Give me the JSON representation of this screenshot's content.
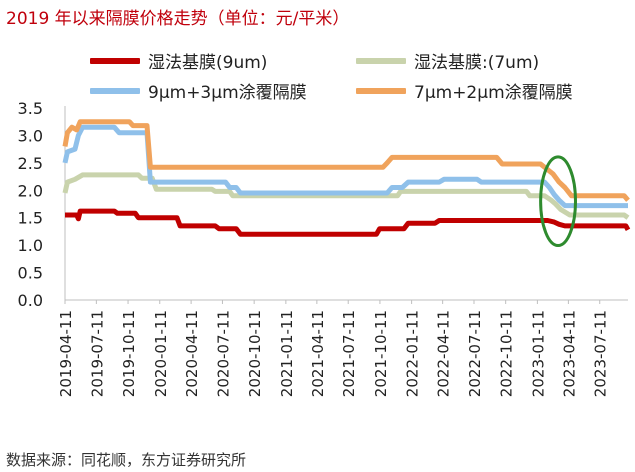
{
  "title": "2019 年以来隔膜价格走势（单位：元/平米）",
  "source": "数据来源：同花顺，东方证券研究所",
  "colors": {
    "wet_9um": "#c00000",
    "dry_7um": "#c9d3ac",
    "coat_9_3": "#8fc0ea",
    "coat_7_2": "#f0a35c",
    "highlight": "#2e8b2e"
  },
  "chart_data": {
    "type": "line",
    "title": "2019 年以来隔膜价格走势（单位：元/平米）",
    "xlabel": "",
    "ylabel": "",
    "ylim": [
      0,
      3.5
    ],
    "yticks": [
      "3.5",
      "3.0",
      "2.5",
      "2.0",
      "1.5",
      "1.0",
      "0.5",
      "0.0"
    ],
    "xticks": [
      "2019-04-11",
      "2019-07-11",
      "2019-10-11",
      "2020-01-11",
      "2020-04-11",
      "2020-07-11",
      "2020-10-11",
      "2021-01-11",
      "2021-04-11",
      "2021-07-11",
      "2021-10-11",
      "2022-01-11",
      "2022-04-11",
      "2022-07-11",
      "2022-10-11",
      "2023-01-11",
      "2023-04-11",
      "2023-07-11"
    ],
    "x_range": [
      "2019-04-11",
      "2023-10-01"
    ],
    "grid": false,
    "legend_position": "top",
    "annotation": "green ellipse around 2023-03 to 2023-05 price decline",
    "series": [
      {
        "name": "湿法基膜(9um)",
        "color": "#c00000",
        "points": [
          [
            "2019-04-11",
            1.55
          ],
          [
            "2019-05-15",
            1.55
          ],
          [
            "2019-05-20",
            1.48
          ],
          [
            "2019-05-25",
            1.62
          ],
          [
            "2019-09-01",
            1.62
          ],
          [
            "2019-09-10",
            1.58
          ],
          [
            "2019-11-01",
            1.58
          ],
          [
            "2019-11-10",
            1.5
          ],
          [
            "2020-03-01",
            1.5
          ],
          [
            "2020-03-10",
            1.35
          ],
          [
            "2020-06-20",
            1.35
          ],
          [
            "2020-07-01",
            1.3
          ],
          [
            "2020-08-20",
            1.3
          ],
          [
            "2020-09-01",
            1.2
          ],
          [
            "2021-10-01",
            1.2
          ],
          [
            "2021-10-10",
            1.3
          ],
          [
            "2021-12-20",
            1.3
          ],
          [
            "2022-01-01",
            1.4
          ],
          [
            "2022-03-20",
            1.4
          ],
          [
            "2022-04-01",
            1.45
          ],
          [
            "2023-02-10",
            1.45
          ],
          [
            "2023-03-01",
            1.42
          ],
          [
            "2023-03-15",
            1.38
          ],
          [
            "2023-04-01",
            1.35
          ],
          [
            "2023-09-25",
            1.35
          ],
          [
            "2023-10-01",
            1.28
          ]
        ]
      },
      {
        "name": "湿法基膜:(7um)",
        "color": "#c9d3ac",
        "points": [
          [
            "2019-04-11",
            1.95
          ],
          [
            "2019-04-18",
            2.15
          ],
          [
            "2019-05-10",
            2.2
          ],
          [
            "2019-06-01",
            2.28
          ],
          [
            "2019-11-10",
            2.28
          ],
          [
            "2019-11-20",
            2.22
          ],
          [
            "2019-12-20",
            2.22
          ],
          [
            "2020-01-01",
            2.02
          ],
          [
            "2020-06-10",
            2.02
          ],
          [
            "2020-06-20",
            1.98
          ],
          [
            "2020-08-01",
            1.98
          ],
          [
            "2020-08-10",
            1.9
          ],
          [
            "2021-12-01",
            1.9
          ],
          [
            "2021-12-10",
            1.98
          ],
          [
            "2022-12-10",
            1.98
          ],
          [
            "2022-12-20",
            1.9
          ],
          [
            "2023-02-01",
            1.9
          ],
          [
            "2023-02-20",
            1.82
          ],
          [
            "2023-03-05",
            1.75
          ],
          [
            "2023-03-20",
            1.65
          ],
          [
            "2023-04-15",
            1.55
          ],
          [
            "2023-09-20",
            1.55
          ],
          [
            "2023-10-01",
            1.5
          ]
        ]
      },
      {
        "name": "9μm+3μm涂覆隔膜",
        "color": "#8fc0ea",
        "points": [
          [
            "2019-04-11",
            2.5
          ],
          [
            "2019-04-18",
            2.7
          ],
          [
            "2019-05-10",
            2.75
          ],
          [
            "2019-05-20",
            3.0
          ],
          [
            "2019-06-01",
            3.15
          ],
          [
            "2019-09-01",
            3.15
          ],
          [
            "2019-09-15",
            3.05
          ],
          [
            "2019-11-01",
            3.05
          ],
          [
            "2019-12-05",
            3.05
          ],
          [
            "2019-12-15",
            2.15
          ],
          [
            "2020-07-20",
            2.15
          ],
          [
            "2020-08-01",
            2.05
          ],
          [
            "2020-08-20",
            2.05
          ],
          [
            "2020-09-01",
            1.95
          ],
          [
            "2021-11-01",
            1.95
          ],
          [
            "2021-11-15",
            2.05
          ],
          [
            "2021-12-15",
            2.05
          ],
          [
            "2022-01-01",
            2.15
          ],
          [
            "2022-04-01",
            2.15
          ],
          [
            "2022-04-15",
            2.2
          ],
          [
            "2022-07-20",
            2.2
          ],
          [
            "2022-08-01",
            2.15
          ],
          [
            "2023-02-01",
            2.15
          ],
          [
            "2023-02-15",
            2.05
          ],
          [
            "2023-03-01",
            1.92
          ],
          [
            "2023-03-15",
            1.82
          ],
          [
            "2023-04-01",
            1.72
          ],
          [
            "2023-10-01",
            1.72
          ]
        ]
      },
      {
        "name": "7μm+2μm涂覆隔膜",
        "color": "#f0a35c",
        "points": [
          [
            "2019-04-11",
            2.8
          ],
          [
            "2019-04-18",
            3.05
          ],
          [
            "2019-05-01",
            3.15
          ],
          [
            "2019-05-15",
            3.1
          ],
          [
            "2019-05-25",
            3.25
          ],
          [
            "2019-10-15",
            3.25
          ],
          [
            "2019-10-25",
            3.18
          ],
          [
            "2019-12-05",
            3.18
          ],
          [
            "2019-12-15",
            2.42
          ],
          [
            "2021-10-20",
            2.42
          ],
          [
            "2021-11-01",
            2.5
          ],
          [
            "2021-11-15",
            2.6
          ],
          [
            "2022-09-15",
            2.6
          ],
          [
            "2022-10-01",
            2.48
          ],
          [
            "2023-01-20",
            2.48
          ],
          [
            "2023-02-05",
            2.4
          ],
          [
            "2023-02-25",
            2.3
          ],
          [
            "2023-03-15",
            2.15
          ],
          [
            "2023-04-01",
            2.05
          ],
          [
            "2023-04-20",
            1.9
          ],
          [
            "2023-09-20",
            1.9
          ],
          [
            "2023-10-01",
            1.82
          ]
        ]
      }
    ]
  }
}
